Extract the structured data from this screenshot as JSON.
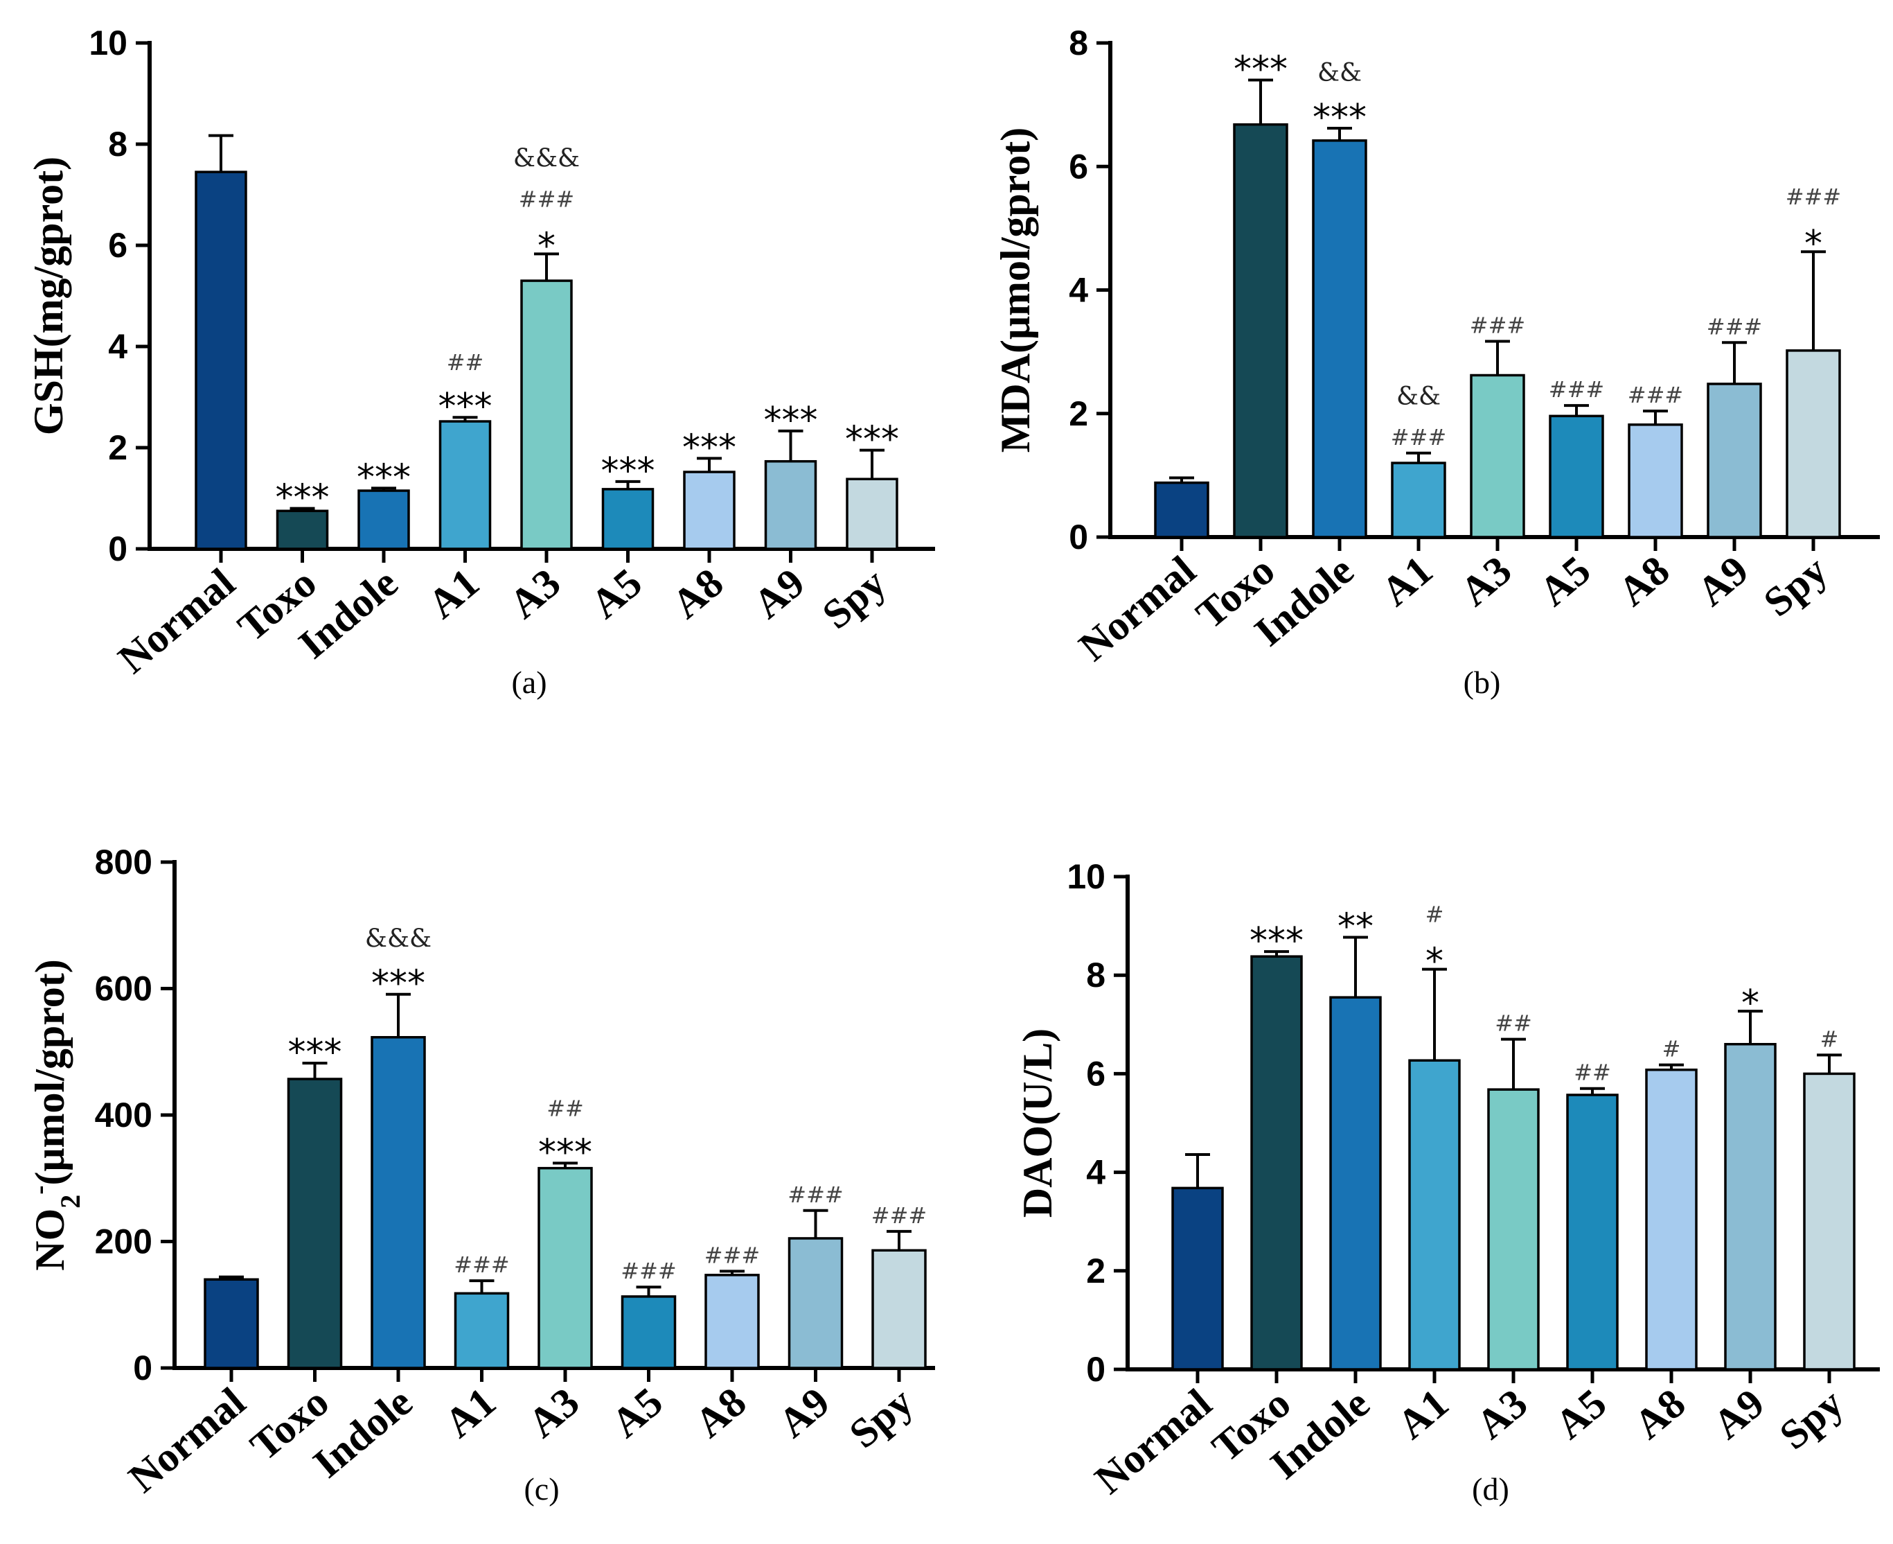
{
  "colors": [
    "#0a4282",
    "#154955",
    "#1873b4",
    "#3fa5ce",
    "#79cac5",
    "#1d8aba",
    "#a6cbee",
    "#8bbcd3",
    "#c3d9e0"
  ],
  "chart_data": [
    {
      "type": "bar",
      "panel_label": "(a)",
      "ylabel": "GSH(mg/gprot)",
      "ylim": [
        0,
        10
      ],
      "yticks": [
        "0",
        "2",
        "4",
        "6",
        "8",
        "10"
      ],
      "categories": [
        "Normal",
        "Toxo",
        "Indole",
        "A1",
        "A3",
        "A5",
        "A8",
        "A9",
        "Spy"
      ],
      "values": [
        7.45,
        0.75,
        1.15,
        2.52,
        5.3,
        1.18,
        1.52,
        1.73,
        1.38
      ],
      "errors": [
        0.72,
        0.05,
        0.05,
        0.08,
        0.53,
        0.15,
        0.27,
        0.6,
        0.57
      ],
      "annotations": [
        {
          "star": "",
          "hash": "",
          "amp": ""
        },
        {
          "star": "***",
          "hash": "",
          "amp": ""
        },
        {
          "star": "***",
          "hash": "",
          "amp": ""
        },
        {
          "star": "***",
          "hash": "##",
          "amp": ""
        },
        {
          "star": "*",
          "hash": "###",
          "amp": "&&&"
        },
        {
          "star": "***",
          "hash": "",
          "amp": ""
        },
        {
          "star": "***",
          "hash": "",
          "amp": ""
        },
        {
          "star": "***",
          "hash": "",
          "amp": ""
        },
        {
          "star": "***",
          "hash": "",
          "amp": ""
        }
      ]
    },
    {
      "type": "bar",
      "panel_label": "(b)",
      "ylabel": "MDA(μmol/gprot)",
      "ylim": [
        0,
        8
      ],
      "yticks": [
        "0",
        "2",
        "4",
        "6",
        "8"
      ],
      "categories": [
        "Normal",
        "Toxo",
        "Indole",
        "A1",
        "A3",
        "A5",
        "A8",
        "A9",
        "Spy"
      ],
      "values": [
        0.88,
        6.68,
        6.42,
        1.2,
        2.62,
        1.96,
        1.82,
        2.48,
        3.02
      ],
      "errors": [
        0.08,
        0.72,
        0.2,
        0.16,
        0.55,
        0.17,
        0.22,
        0.67,
        1.6
      ],
      "annotations": [
        {
          "star": "",
          "hash": "",
          "amp": ""
        },
        {
          "star": "***",
          "hash": "",
          "amp": ""
        },
        {
          "star": "***",
          "hash": "",
          "amp": "&&"
        },
        {
          "star": "",
          "hash": "###",
          "amp": "&&"
        },
        {
          "star": "",
          "hash": "###",
          "amp": ""
        },
        {
          "star": "",
          "hash": "###",
          "amp": ""
        },
        {
          "star": "",
          "hash": "###",
          "amp": ""
        },
        {
          "star": "",
          "hash": "###",
          "amp": ""
        },
        {
          "star": "*",
          "hash": "###",
          "amp": ""
        }
      ]
    },
    {
      "type": "bar",
      "panel_label": "(c)",
      "ylabel_main": "NO",
      "ylabel_sub": "2",
      "ylabel_sup": "-",
      "ylabel_rest": "(μmol/gprot)",
      "ylim": [
        0,
        800
      ],
      "yticks": [
        "0",
        "200",
        "400",
        "600",
        "800"
      ],
      "categories": [
        "Normal",
        "Toxo",
        "Indole",
        "A1",
        "A3",
        "A5",
        "A8",
        "A9",
        "Spy"
      ],
      "values": [
        140,
        457,
        523,
        118,
        316,
        113,
        147,
        205,
        186
      ],
      "errors": [
        4,
        25,
        68,
        20,
        8,
        15,
        6,
        44,
        30
      ],
      "annotations": [
        {
          "star": "",
          "hash": "",
          "amp": ""
        },
        {
          "star": "***",
          "hash": "",
          "amp": ""
        },
        {
          "star": "***",
          "hash": "",
          "amp": "&&&"
        },
        {
          "star": "",
          "hash": "###",
          "amp": ""
        },
        {
          "star": "***",
          "hash": "##",
          "amp": ""
        },
        {
          "star": "",
          "hash": "###",
          "amp": ""
        },
        {
          "star": "",
          "hash": "###",
          "amp": ""
        },
        {
          "star": "",
          "hash": "###",
          "amp": ""
        },
        {
          "star": "",
          "hash": "###",
          "amp": ""
        }
      ]
    },
    {
      "type": "bar",
      "panel_label": "(d)",
      "ylabel": "DAO(U/L)",
      "ylim": [
        0,
        10
      ],
      "yticks": [
        "0",
        "2",
        "4",
        "6",
        "8",
        "10"
      ],
      "categories": [
        "Normal",
        "Toxo",
        "Indole",
        "A1",
        "A3",
        "A5",
        "A8",
        "A9",
        "Spy"
      ],
      "values": [
        3.68,
        8.38,
        7.55,
        6.27,
        5.68,
        5.57,
        6.08,
        6.6,
        6.0
      ],
      "errors": [
        0.68,
        0.1,
        1.22,
        1.85,
        1.02,
        0.13,
        0.1,
        0.67,
        0.38
      ],
      "annotations": [
        {
          "star": "",
          "hash": "",
          "amp": ""
        },
        {
          "star": "***",
          "hash": "",
          "amp": ""
        },
        {
          "star": "**",
          "hash": "",
          "amp": ""
        },
        {
          "star": "*",
          "hash": "#",
          "amp": ""
        },
        {
          "star": "",
          "hash": "##",
          "amp": ""
        },
        {
          "star": "",
          "hash": "##",
          "amp": ""
        },
        {
          "star": "",
          "hash": "#",
          "amp": ""
        },
        {
          "star": "*",
          "hash": "",
          "amp": ""
        },
        {
          "star": "",
          "hash": "#",
          "amp": ""
        }
      ]
    }
  ]
}
